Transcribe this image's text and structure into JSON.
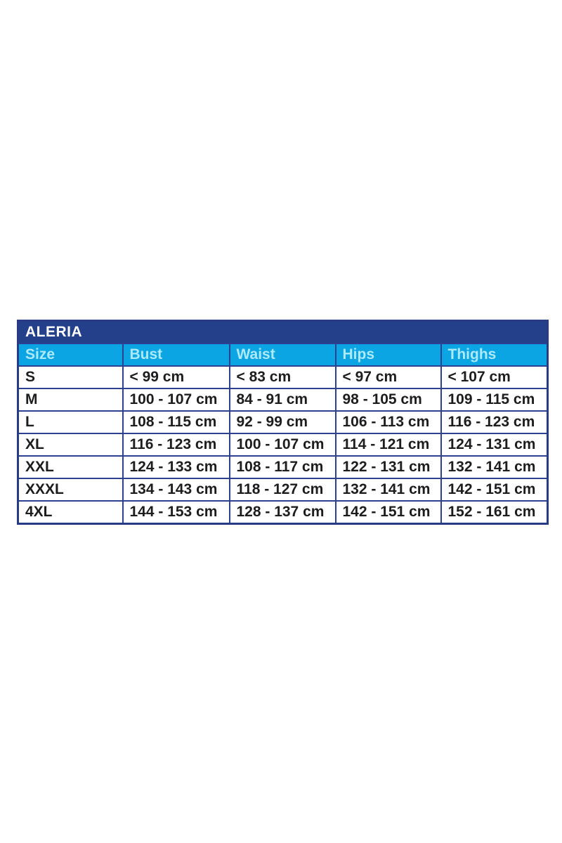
{
  "table": {
    "title": "ALERIA",
    "columns": [
      "Size",
      "Bust",
      "Waist",
      "Hips",
      "Thighs"
    ],
    "rows": [
      [
        "S",
        "< 99 cm",
        "< 83 cm",
        "< 97 cm",
        "< 107 cm"
      ],
      [
        "M",
        "100 - 107 cm",
        "84 - 91 cm",
        "98 - 105 cm",
        "109 - 115 cm"
      ],
      [
        "L",
        "108 - 115 cm",
        "92 - 99 cm",
        "106 - 113 cm",
        "116 - 123 cm"
      ],
      [
        "XL",
        "116 - 123 cm",
        "100 - 107 cm",
        "114 - 121 cm",
        "124 - 131 cm"
      ],
      [
        "XXL",
        "124 - 133 cm",
        "108 - 117 cm",
        "122 - 131 cm",
        "132 - 141 cm"
      ],
      [
        "XXXL",
        "134 - 143 cm",
        "118 - 127 cm",
        "132 - 141 cm",
        "142 - 151 cm"
      ],
      [
        "4XL",
        "144 - 153 cm",
        "128 - 137 cm",
        "142 - 151 cm",
        "152 - 161 cm"
      ]
    ],
    "colors": {
      "title_bar_bg": "#24408a",
      "title_text": "#ffffff",
      "header_bg": "#0aa5e2",
      "header_text": "#aceafb",
      "border": "#2e4191",
      "cell_bg": "#ffffff",
      "cell_text": "#1d1d1f"
    }
  },
  "chart_data": {
    "type": "table",
    "title": "ALERIA",
    "columns": [
      "Size",
      "Bust",
      "Waist",
      "Hips",
      "Thighs"
    ],
    "rows": [
      {
        "size": "S",
        "bust": "< 99 cm",
        "waist": "< 83 cm",
        "hips": "< 97 cm",
        "thighs": "< 107 cm"
      },
      {
        "size": "M",
        "bust": "100 - 107 cm",
        "waist": "84 - 91 cm",
        "hips": "98 - 105 cm",
        "thighs": "109 - 115 cm"
      },
      {
        "size": "L",
        "bust": "108 - 115 cm",
        "waist": "92 - 99 cm",
        "hips": "106 - 113 cm",
        "thighs": "116 - 123 cm"
      },
      {
        "size": "XL",
        "bust": "116 - 123 cm",
        "waist": "100 - 107 cm",
        "hips": "114 - 121 cm",
        "thighs": "124 - 131 cm"
      },
      {
        "size": "XXL",
        "bust": "124 - 133 cm",
        "waist": "108 - 117 cm",
        "hips": "122 - 131 cm",
        "thighs": "132 - 141 cm"
      },
      {
        "size": "XXXL",
        "bust": "134 - 143 cm",
        "waist": "118 - 127 cm",
        "hips": "132 - 141 cm",
        "thighs": "142 - 151 cm"
      },
      {
        "size": "4XL",
        "bust": "144 - 153 cm",
        "waist": "128 - 137 cm",
        "hips": "142 - 151 cm",
        "thighs": "152 - 161 cm"
      }
    ],
    "units": "cm"
  }
}
